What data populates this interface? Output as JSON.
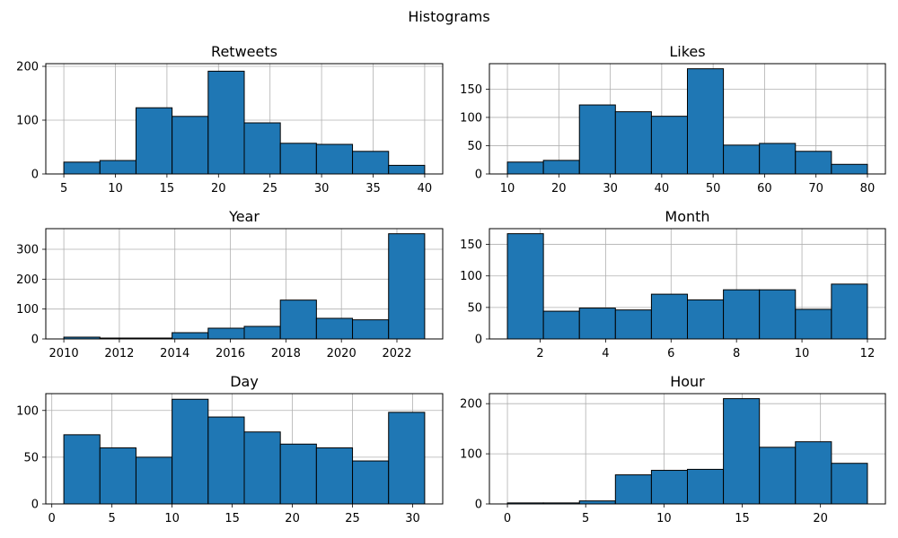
{
  "figure": {
    "title": "Histograms",
    "bar_color": "#1f77b4",
    "edge_color": "#000000",
    "grid_color": "#b0b0b0"
  },
  "chart_data": [
    {
      "type": "bar",
      "title": "Retweets",
      "bin_edges": [
        5,
        8.5,
        12,
        15.5,
        19,
        22.5,
        26,
        29.5,
        33,
        36.5,
        40
      ],
      "values": [
        22,
        25,
        123,
        107,
        191,
        95,
        57,
        55,
        42,
        16
      ],
      "xlim": [
        3.25,
        41.75
      ],
      "ylim": [
        0,
        205
      ],
      "xticks": [
        5,
        10,
        15,
        20,
        25,
        30,
        35,
        40
      ],
      "yticks": [
        0,
        100,
        200
      ],
      "grid": true
    },
    {
      "type": "bar",
      "title": "Likes",
      "bin_edges": [
        10,
        17,
        24,
        31,
        38,
        45,
        52,
        59,
        66,
        73,
        80
      ],
      "values": [
        21,
        24,
        122,
        110,
        102,
        186,
        51,
        54,
        40,
        17
      ],
      "xlim": [
        6.5,
        83.5
      ],
      "ylim": [
        0,
        195
      ],
      "xticks": [
        10,
        20,
        30,
        40,
        50,
        60,
        70,
        80
      ],
      "yticks": [
        0,
        50,
        100,
        150
      ],
      "grid": true
    },
    {
      "type": "bar",
      "title": "Year",
      "bin_edges": [
        2010,
        2011.3,
        2012.6,
        2013.9,
        2015.2,
        2016.5,
        2017.8,
        2019.1,
        2020.4,
        2021.7,
        2023
      ],
      "values": [
        6,
        3,
        3,
        21,
        36,
        42,
        130,
        69,
        64,
        352
      ],
      "xlim": [
        2009.35,
        2023.65
      ],
      "ylim": [
        0,
        369
      ],
      "xticks": [
        2010,
        2012,
        2014,
        2016,
        2018,
        2020,
        2022
      ],
      "yticks": [
        0,
        100,
        200,
        300
      ],
      "grid": true
    },
    {
      "type": "bar",
      "title": "Month",
      "bin_edges": [
        1,
        2.1,
        3.2,
        4.3,
        5.4,
        6.5,
        7.6,
        8.7,
        9.8,
        10.9,
        12
      ],
      "values": [
        167,
        44,
        49,
        46,
        71,
        62,
        78,
        78,
        47,
        87
      ],
      "xlim": [
        0.45,
        12.55
      ],
      "ylim": [
        0,
        175
      ],
      "xticks": [
        2,
        4,
        6,
        8,
        10,
        12
      ],
      "yticks": [
        0,
        50,
        100,
        150
      ],
      "grid": true
    },
    {
      "type": "bar",
      "title": "Day",
      "bin_edges": [
        1,
        4,
        7,
        10,
        13,
        16,
        19,
        22,
        25,
        28,
        31
      ],
      "values": [
        74,
        60,
        50,
        112,
        93,
        77,
        64,
        60,
        46,
        98
      ],
      "xlim": [
        -0.5,
        32.5
      ],
      "ylim": [
        0,
        118
      ],
      "xticks": [
        0,
        5,
        10,
        15,
        20,
        25,
        30
      ],
      "yticks": [
        0,
        50,
        100
      ],
      "grid": true
    },
    {
      "type": "bar",
      "title": "Hour",
      "bin_edges": [
        0,
        2.3,
        4.6,
        6.9,
        9.2,
        11.5,
        13.8,
        16.1,
        18.4,
        20.7,
        23
      ],
      "values": [
        2,
        2,
        6,
        58,
        67,
        69,
        210,
        113,
        124,
        81
      ],
      "xlim": [
        -1.15,
        24.15
      ],
      "ylim": [
        0,
        220
      ],
      "xticks": [
        0,
        5,
        10,
        15,
        20
      ],
      "yticks": [
        0,
        100,
        200
      ],
      "grid": true
    }
  ]
}
